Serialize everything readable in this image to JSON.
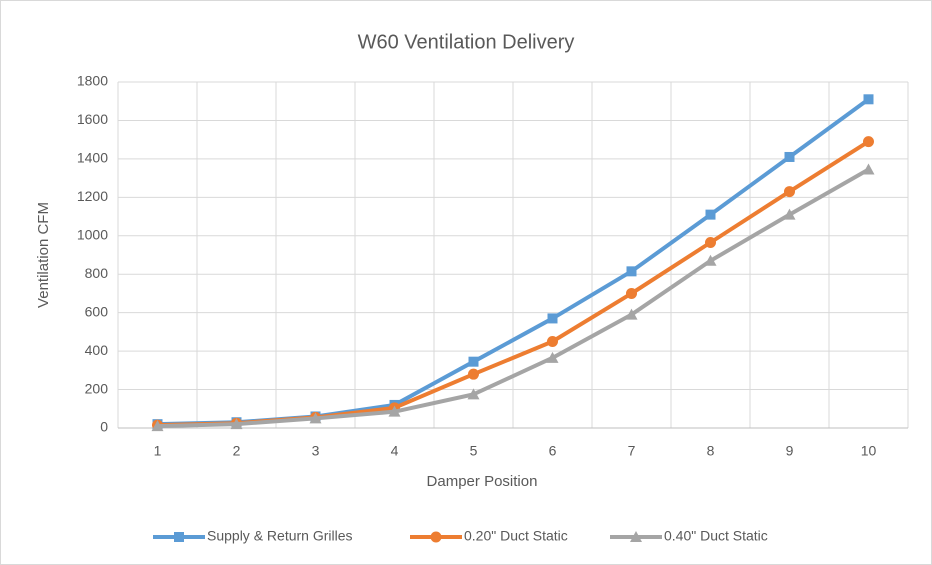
{
  "chart_data": {
    "type": "line",
    "title": "W60 Ventilation Delivery",
    "x_label": "Damper Position",
    "y_label": "Ventilation CFM",
    "categories": [
      "1",
      "2",
      "3",
      "4",
      "5",
      "6",
      "7",
      "8",
      "9",
      "10"
    ],
    "series": [
      {
        "name": "Supply & Return Grilles",
        "color": "#5b9bd5",
        "marker": "square",
        "values": [
          20,
          30,
          60,
          120,
          345,
          570,
          815,
          1110,
          1410,
          1710
        ]
      },
      {
        "name": "0.20\" Duct Static",
        "color": "#ed7d31",
        "marker": "circle",
        "values": [
          15,
          25,
          55,
          105,
          280,
          450,
          700,
          965,
          1230,
          1490
        ]
      },
      {
        "name": "0.40\" Duct Static",
        "color": "#a5a5a5",
        "marker": "triangle",
        "values": [
          10,
          20,
          50,
          85,
          175,
          365,
          590,
          870,
          1110,
          1345
        ]
      }
    ],
    "ylim": [
      0,
      1800
    ],
    "yticks": [
      0,
      200,
      400,
      600,
      800,
      1000,
      1200,
      1400,
      1600,
      1800
    ],
    "grid": true,
    "legend": "bottom"
  }
}
